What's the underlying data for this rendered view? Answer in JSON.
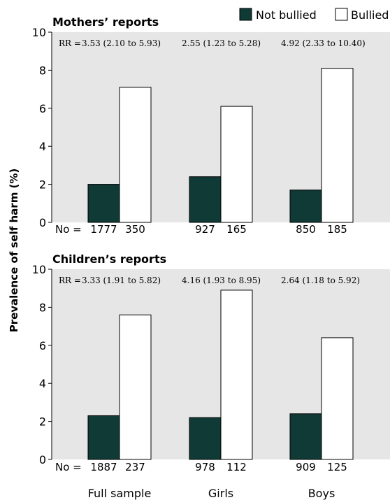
{
  "legend": {
    "not_bullied": "Not bullied",
    "bullied": "Bullied"
  },
  "colors": {
    "not_bullied": "#0f3a36",
    "bullied": "#ffffff",
    "panel_bg": "#e6e6e6"
  },
  "ylabel": "Prevalence of self harm (%)",
  "x_categories": [
    "Full sample",
    "Girls",
    "Boys"
  ],
  "chart_data": [
    {
      "type": "bar",
      "title": "Mothers’ reports",
      "categories": [
        "Full sample",
        "Girls",
        "Boys"
      ],
      "ylabel": "Prevalence of self harm (%)",
      "ylim": [
        0,
        10
      ],
      "yticks": [
        0,
        2,
        4,
        6,
        8,
        10
      ],
      "series": [
        {
          "name": "Not bullied",
          "values": [
            2.0,
            2.4,
            1.7
          ]
        },
        {
          "name": "Bullied",
          "values": [
            7.1,
            6.1,
            8.1
          ]
        }
      ],
      "rr_prefix": "RR =",
      "rr_labels": [
        "3.53 (2.10 to 5.93)",
        "2.55 (1.23 to 5.28)",
        "4.92 (2.33 to 10.40)"
      ],
      "n_prefix": "No =",
      "n_not_bullied": [
        "1777",
        "927",
        "850"
      ],
      "n_bullied": [
        "350",
        "165",
        "185"
      ],
      "grid": false,
      "legend_position": "top-right"
    },
    {
      "type": "bar",
      "title": "Children’s reports",
      "categories": [
        "Full sample",
        "Girls",
        "Boys"
      ],
      "ylabel": "Prevalence of self harm (%)",
      "ylim": [
        0,
        10
      ],
      "yticks": [
        0,
        2,
        4,
        6,
        8,
        10
      ],
      "series": [
        {
          "name": "Not bullied",
          "values": [
            2.3,
            2.2,
            2.4
          ]
        },
        {
          "name": "Bullied",
          "values": [
            7.6,
            8.9,
            6.4
          ]
        }
      ],
      "rr_prefix": "RR =",
      "rr_labels": [
        "3.33 (1.91 to 5.82)",
        "4.16 (1.93 to 8.95)",
        "2.64 (1.18 to 5.92)"
      ],
      "n_prefix": "No =",
      "n_not_bullied": [
        "1887",
        "978",
        "909"
      ],
      "n_bullied": [
        "237",
        "112",
        "125"
      ],
      "grid": false
    }
  ]
}
